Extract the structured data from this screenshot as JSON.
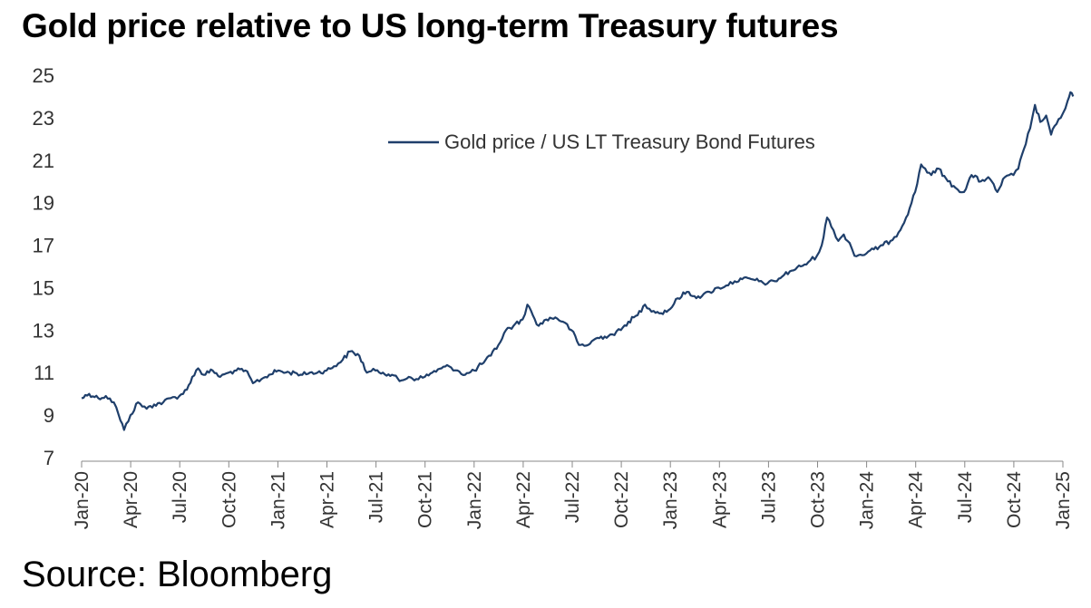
{
  "chart_data": {
    "type": "line",
    "title": "Gold price relative to US long-term Treasury futures",
    "source": "Source: Bloomberg",
    "ylim": [
      7,
      25
    ],
    "yticks": [
      7,
      9,
      11,
      13,
      15,
      17,
      19,
      21,
      23,
      25
    ],
    "xlim": [
      "2020-01",
      "2025-01"
    ],
    "xticks": [
      "Jan-20",
      "Apr-20",
      "Jul-20",
      "Oct-20",
      "Jan-21",
      "Apr-21",
      "Jul-21",
      "Oct-21",
      "Jan-22",
      "Apr-22",
      "Jul-22",
      "Oct-22",
      "Jan-23",
      "Apr-23",
      "Jul-23",
      "Oct-23",
      "Jan-24",
      "Apr-24",
      "Jul-24",
      "Oct-24",
      "Jan-25"
    ],
    "grid": false,
    "legend_position": "top-right",
    "line_color": "#1f3f6b",
    "series": [
      {
        "name": "Gold price / US LT Treasury Bond Futures",
        "points": [
          [
            "2020-01-01",
            9.8
          ],
          [
            "2020-01-15",
            10.0
          ],
          [
            "2020-02-01",
            9.8
          ],
          [
            "2020-02-15",
            9.9
          ],
          [
            "2020-03-01",
            9.6
          ],
          [
            "2020-03-10",
            9.0
          ],
          [
            "2020-03-20",
            8.3
          ],
          [
            "2020-04-01",
            9.0
          ],
          [
            "2020-04-15",
            9.6
          ],
          [
            "2020-05-01",
            9.3
          ],
          [
            "2020-05-15",
            9.5
          ],
          [
            "2020-06-01",
            9.6
          ],
          [
            "2020-06-15",
            9.8
          ],
          [
            "2020-07-01",
            9.9
          ],
          [
            "2020-07-15",
            10.2
          ],
          [
            "2020-07-25",
            10.8
          ],
          [
            "2020-08-05",
            11.2
          ],
          [
            "2020-08-15",
            10.9
          ],
          [
            "2020-09-01",
            11.1
          ],
          [
            "2020-09-15",
            10.8
          ],
          [
            "2020-10-01",
            11.0
          ],
          [
            "2020-10-15",
            11.1
          ],
          [
            "2020-11-01",
            11.1
          ],
          [
            "2020-11-15",
            10.5
          ],
          [
            "2020-12-01",
            10.7
          ],
          [
            "2020-12-15",
            10.9
          ],
          [
            "2021-01-01",
            11.1
          ],
          [
            "2021-01-15",
            11.0
          ],
          [
            "2021-02-01",
            11.0
          ],
          [
            "2021-02-15",
            10.9
          ],
          [
            "2021-03-01",
            11.0
          ],
          [
            "2021-03-15",
            11.0
          ],
          [
            "2021-04-01",
            11.1
          ],
          [
            "2021-04-15",
            11.3
          ],
          [
            "2021-05-01",
            11.6
          ],
          [
            "2021-05-15",
            12.0
          ],
          [
            "2021-06-01",
            11.8
          ],
          [
            "2021-06-15",
            11.0
          ],
          [
            "2021-07-01",
            11.1
          ],
          [
            "2021-07-15",
            11.0
          ],
          [
            "2021-08-01",
            10.9
          ],
          [
            "2021-08-15",
            10.6
          ],
          [
            "2021-09-01",
            10.8
          ],
          [
            "2021-09-15",
            10.7
          ],
          [
            "2021-10-01",
            10.8
          ],
          [
            "2021-10-15",
            11.0
          ],
          [
            "2021-11-01",
            11.2
          ],
          [
            "2021-11-15",
            11.3
          ],
          [
            "2021-12-01",
            11.1
          ],
          [
            "2021-12-15",
            10.9
          ],
          [
            "2022-01-01",
            11.1
          ],
          [
            "2022-01-15",
            11.4
          ],
          [
            "2022-02-01",
            11.8
          ],
          [
            "2022-02-15",
            12.3
          ],
          [
            "2022-03-01",
            13.0
          ],
          [
            "2022-03-15",
            13.2
          ],
          [
            "2022-04-01",
            13.5
          ],
          [
            "2022-04-10",
            14.2
          ],
          [
            "2022-04-20",
            13.7
          ],
          [
            "2022-05-01",
            13.2
          ],
          [
            "2022-05-15",
            13.5
          ],
          [
            "2022-06-01",
            13.6
          ],
          [
            "2022-06-15",
            13.4
          ],
          [
            "2022-07-01",
            13.0
          ],
          [
            "2022-07-15",
            12.3
          ],
          [
            "2022-08-01",
            12.3
          ],
          [
            "2022-08-15",
            12.6
          ],
          [
            "2022-09-01",
            12.7
          ],
          [
            "2022-09-15",
            12.8
          ],
          [
            "2022-10-01",
            13.0
          ],
          [
            "2022-10-15",
            13.4
          ],
          [
            "2022-11-01",
            13.7
          ],
          [
            "2022-11-15",
            14.2
          ],
          [
            "2022-12-01",
            13.9
          ],
          [
            "2022-12-15",
            13.8
          ],
          [
            "2023-01-01",
            14.0
          ],
          [
            "2023-01-15",
            14.5
          ],
          [
            "2023-02-01",
            14.8
          ],
          [
            "2023-02-15",
            14.6
          ],
          [
            "2023-03-01",
            14.6
          ],
          [
            "2023-03-15",
            14.8
          ],
          [
            "2023-04-01",
            15.0
          ],
          [
            "2023-04-15",
            15.1
          ],
          [
            "2023-05-01",
            15.3
          ],
          [
            "2023-05-15",
            15.4
          ],
          [
            "2023-06-01",
            15.4
          ],
          [
            "2023-06-15",
            15.3
          ],
          [
            "2023-07-01",
            15.2
          ],
          [
            "2023-07-15",
            15.3
          ],
          [
            "2023-08-01",
            15.6
          ],
          [
            "2023-08-15",
            15.8
          ],
          [
            "2023-09-01",
            16.0
          ],
          [
            "2023-09-15",
            16.2
          ],
          [
            "2023-10-01",
            16.5
          ],
          [
            "2023-10-10",
            17.0
          ],
          [
            "2023-10-20",
            18.3
          ],
          [
            "2023-11-01",
            17.7
          ],
          [
            "2023-11-10",
            17.2
          ],
          [
            "2023-11-20",
            17.5
          ],
          [
            "2023-12-01",
            17.1
          ],
          [
            "2023-12-10",
            16.5
          ],
          [
            "2024-01-01",
            16.6
          ],
          [
            "2024-01-15",
            16.8
          ],
          [
            "2024-02-01",
            17.0
          ],
          [
            "2024-02-15",
            17.2
          ],
          [
            "2024-03-01",
            17.6
          ],
          [
            "2024-03-15",
            18.3
          ],
          [
            "2024-04-01",
            19.5
          ],
          [
            "2024-04-12",
            20.8
          ],
          [
            "2024-05-01",
            20.3
          ],
          [
            "2024-05-15",
            20.6
          ],
          [
            "2024-06-01",
            20.0
          ],
          [
            "2024-06-15",
            19.7
          ],
          [
            "2024-07-01",
            19.5
          ],
          [
            "2024-07-15",
            20.3
          ],
          [
            "2024-08-01",
            20.0
          ],
          [
            "2024-08-15",
            20.2
          ],
          [
            "2024-09-01",
            19.5
          ],
          [
            "2024-09-15",
            20.2
          ],
          [
            "2024-10-01",
            20.3
          ],
          [
            "2024-10-10",
            20.6
          ],
          [
            "2024-10-20",
            21.5
          ],
          [
            "2024-11-01",
            22.5
          ],
          [
            "2024-11-10",
            23.6
          ],
          [
            "2024-11-20",
            22.8
          ],
          [
            "2024-12-01",
            23.1
          ],
          [
            "2024-12-10",
            22.2
          ],
          [
            "2024-12-20",
            22.7
          ],
          [
            "2025-01-01",
            23.2
          ],
          [
            "2025-01-10",
            23.8
          ],
          [
            "2025-01-15",
            24.2
          ],
          [
            "2025-01-20",
            24.0
          ]
        ]
      }
    ]
  }
}
